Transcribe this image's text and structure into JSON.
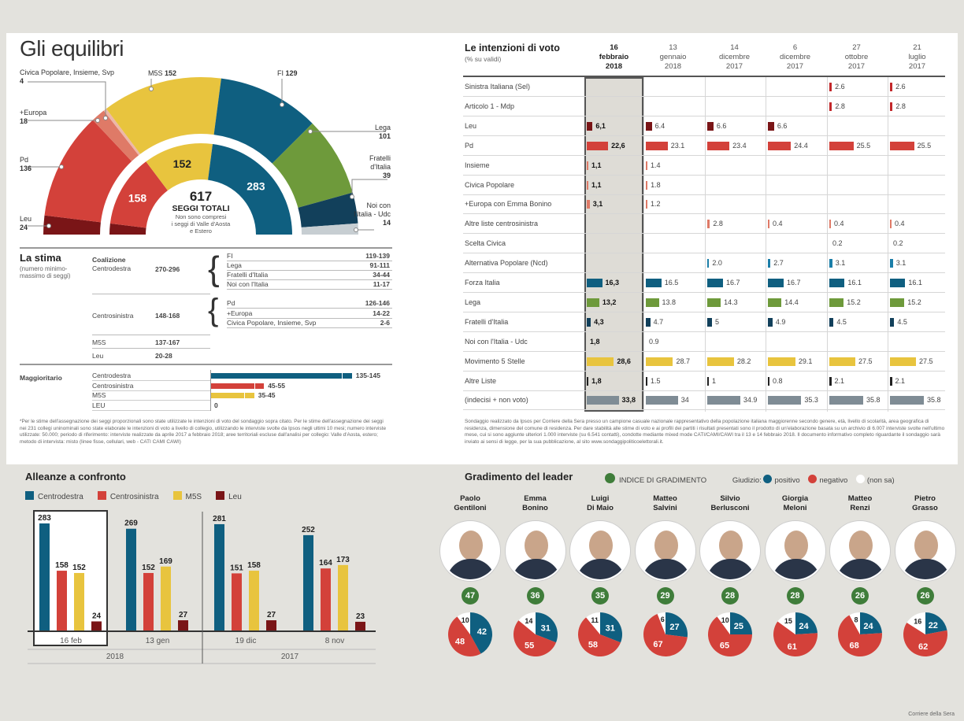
{
  "equilibri": {
    "title": "Gli equilibri",
    "total": "617",
    "total_label": "SEGGI TOTALI",
    "note": [
      "Non sono compresi",
      "i seggi di Valle d'Aosta",
      "e Estero"
    ],
    "outer": [
      {
        "party": "Leu",
        "seats": 24,
        "color": "#7a1517"
      },
      {
        "party": "Pd",
        "seats": 136,
        "color": "#d3413a"
      },
      {
        "party": "+Europa",
        "seats": 18,
        "color": "#df7a67"
      },
      {
        "party": "Civica Popolare, Insieme, Svp",
        "seats": 4,
        "color": "#edb7a8"
      },
      {
        "party": "M5S",
        "seats": 152,
        "color": "#e8c43e"
      },
      {
        "party": "FI",
        "seats": 129,
        "color": "#0f5f80"
      },
      {
        "party": "Lega",
        "seats": 101,
        "color": "#6e9a3b"
      },
      {
        "party": "Fratelli d'Italia",
        "seats": 39,
        "color": "#12405b"
      },
      {
        "party": "Noi con l'Italia - Udc",
        "seats": 14,
        "color": "#c7ced2"
      }
    ],
    "inner": [
      {
        "group": "Leu",
        "seats": 24,
        "label": "",
        "color": "#7a1517"
      },
      {
        "group": "Centrosinistra",
        "seats": 158,
        "label": "158",
        "color": "#d3413a"
      },
      {
        "group": "M5S",
        "seats": 152,
        "label": "152",
        "color": "#e8c43e"
      },
      {
        "group": "Centrodestra",
        "seats": 283,
        "label": "283",
        "color": "#0f5f80"
      }
    ],
    "labels": {
      "civica": {
        "name": "Civica Popolare, Insieme, Svp",
        "value": "4"
      },
      "europa": {
        "name": "+Europa",
        "value": "18"
      },
      "pd": {
        "name": "Pd",
        "value": "136"
      },
      "leu": {
        "name": "Leu",
        "value": "24"
      },
      "m5s": {
        "name": "M5S",
        "value": "152"
      },
      "fi": {
        "name": "FI",
        "value": "129"
      },
      "lega": {
        "name": "Lega",
        "value": "101"
      },
      "fdi": {
        "name": "Fratelli d'Italia",
        "value": "39"
      },
      "noi": {
        "name": "Noi con l'Italia - Udc",
        "value": "14"
      }
    }
  },
  "stima": {
    "title": "La stima",
    "subtitle": "(numero minimo-massimo di seggi)",
    "coalizione": "Coalizione",
    "cdx": {
      "name": "Centrodestra",
      "range": "270-296",
      "parts": [
        [
          "FI",
          "119-139"
        ],
        [
          "Lega",
          "91-111"
        ],
        [
          "Fratelli d'Italia",
          "34-44"
        ],
        [
          "Noi con l'Italia",
          "11-17"
        ]
      ]
    },
    "csx": {
      "name": "Centrosinistra",
      "range": "148-168",
      "parts": [
        [
          "Pd",
          "126-146"
        ],
        [
          "+Europa",
          "14-22"
        ],
        [
          "Civica Popolare, Insieme, Svp",
          "2-6"
        ]
      ]
    },
    "m5s": {
      "name": "M5S",
      "range": "137-167"
    },
    "leu": {
      "name": "Leu",
      "range": "20-28"
    },
    "maggioritario": {
      "title": "Maggioritario",
      "rows": [
        {
          "name": "Centrodestra",
          "min": 135,
          "max": 145,
          "label": "135-145",
          "color": "#0f5f80"
        },
        {
          "name": "Centrosinistra",
          "min": 45,
          "max": 55,
          "label": "45-55",
          "color": "#d3413a"
        },
        {
          "name": "M5S",
          "min": 35,
          "max": 45,
          "label": "35-45",
          "color": "#e8c43e"
        },
        {
          "name": "LEU",
          "min": 0,
          "max": 0,
          "label": "0",
          "color": "#7a1517"
        }
      ]
    },
    "footnote": "*Per le stime dell'assegnazione dei seggi proporzionali sono state utilizzate le intenzioni di voto del sondaggio sopra citato. Per le stime dell'assegnazione dei seggi nei 231 collegi uninominali sono state elaborate le intenzioni di voto a livello di collegio, utilizzando le interviste svolte da Ipsos negli ultimi 10 mesi; numero interviste utilizzate: 50.000; periodo di riferimento: interviste realizzate da aprile 2017 a febbraio 2018; aree territoriali escluse dall'analisi per collegio: Valle d'Aosta, estero; metodo di intervista: misto (linee fisse, cellulari, web - CATI CAMI CAWI)"
  },
  "intenzioni": {
    "title": "Le intenzioni di voto",
    "subtitle": "(% su validi)",
    "columns": [
      [
        "16",
        "febbraio",
        "2018"
      ],
      [
        "13",
        "gennaio",
        "2018"
      ],
      [
        "14",
        "dicembre",
        "2017"
      ],
      [
        "6",
        "dicembre",
        "2017"
      ],
      [
        "27",
        "ottobre",
        "2017"
      ],
      [
        "21",
        "luglio",
        "2017"
      ]
    ],
    "rows": [
      {
        "name": "Sinistra Italiana (Sel)",
        "color": "#c3282b",
        "values": [
          "",
          "",
          "",
          "",
          "2.6",
          "2.6"
        ]
      },
      {
        "name": "Articolo 1 - Mdp",
        "color": "#c3282b",
        "values": [
          "",
          "",
          "",
          "",
          "2.8",
          "2.8"
        ]
      },
      {
        "name": "Leu",
        "color": "#7a1517",
        "values": [
          "6,1",
          "6.4",
          "6.6",
          "6.6",
          "",
          ""
        ]
      },
      {
        "name": "Pd",
        "color": "#d3413a",
        "values": [
          "22,6",
          "23.1",
          "23.4",
          "24.4",
          "25.5",
          "25.5"
        ]
      },
      {
        "name": "Insieme",
        "color": "#df7a67",
        "values": [
          "1,1",
          "1.4",
          "",
          "",
          "",
          ""
        ]
      },
      {
        "name": "Civica Popolare",
        "color": "#df7a67",
        "values": [
          "1,1",
          "1.8",
          "",
          "",
          "",
          ""
        ]
      },
      {
        "name": "+Europa con Emma Bonino",
        "color": "#df7a67",
        "values": [
          "3,1",
          "1.2",
          "",
          "",
          "",
          ""
        ]
      },
      {
        "name": "Altre liste centrosinistra",
        "color": "#df7a67",
        "values": [
          "",
          "",
          "2.8",
          "0.4",
          "0.4",
          "0.4"
        ]
      },
      {
        "name": "Scelta Civica",
        "color": "#999999",
        "values": [
          "",
          "",
          "",
          "",
          "0.2",
          "0.2"
        ]
      },
      {
        "name": "Alternativa Popolare (Ncd)",
        "color": "#1b7ea8",
        "values": [
          "",
          "",
          "2.0",
          "2.7",
          "3.1",
          "3.1"
        ]
      },
      {
        "name": "Forza Italia",
        "color": "#0f5f80",
        "values": [
          "16,3",
          "16.5",
          "16.7",
          "16.7",
          "16.1",
          "16.1"
        ]
      },
      {
        "name": "Lega",
        "color": "#6e9a3b",
        "values": [
          "13,2",
          "13.8",
          "14.3",
          "14.4",
          "15.2",
          "15.2"
        ]
      },
      {
        "name": "Fratelli d'Italia",
        "color": "#12405b",
        "values": [
          "4,3",
          "4.7",
          "5",
          "4.9",
          "4.5",
          "4.5"
        ]
      },
      {
        "name": "Noi con l'Italia - Udc",
        "color": "#999999",
        "values": [
          "1,8",
          "0.9",
          "",
          "",
          "",
          ""
        ]
      },
      {
        "name": "Movimento 5 Stelle",
        "color": "#e8c43e",
        "values": [
          "28,6",
          "28.7",
          "28.2",
          "29.1",
          "27.5",
          "27.5"
        ]
      },
      {
        "name": "Altre Liste",
        "color": "#222222",
        "values": [
          "1,8",
          "1.5",
          "1",
          "0.8",
          "2.1",
          "2.1"
        ]
      },
      {
        "name": "(indecisi + non voto)",
        "color": "#7f8c95",
        "values": [
          "33,8",
          "34",
          "34.9",
          "35.3",
          "35.8",
          "35.8"
        ]
      }
    ],
    "footnote": "Sondaggio realizzato da Ipsos per Corriere della Sera presso un campione casuale nazionale rappresentativo della popolazione italiana maggiorenne secondo genere, età, livello di scolarità, area geografica di residenza, dimensione del comune di residenza. Per dare stabilità alle stime di voto e ai profili dei partiti i risultati presentati sono il prodotto di un'elaborazione basata su un archivio di 6.007 interviste svolte nell'ultimo mese, cui si sono aggiunte ulteriori 1.000 interviste (su 6.541 contatti), condotte mediante mixed mode CATI/CAMI/CAWI tra il 13 e 14 febbraio 2018. Il documento informativo completo riguardante il sondaggio sarà inviato ai sensi di legge, per la sua pubblicazione, al sito www.sondaggipoliticoelettorali.it."
  },
  "chart_data": [
    {
      "type": "bar",
      "title": "Alleanze a confronto",
      "categories": [
        "16 feb",
        "13 gen",
        "19 dic",
        "8 nov"
      ],
      "years": [
        {
          "label": "2018",
          "span": 2
        },
        {
          "label": "2017",
          "span": 2
        }
      ],
      "series": [
        {
          "name": "Centrodestra",
          "color": "#0f5f80",
          "values": [
            283,
            269,
            281,
            252
          ]
        },
        {
          "name": "Centrosinistra",
          "color": "#d3413a",
          "values": [
            158,
            152,
            151,
            164
          ]
        },
        {
          "name": "M5S",
          "color": "#e8c43e",
          "values": [
            152,
            169,
            158,
            173
          ]
        },
        {
          "name": "Leu",
          "color": "#7a1517",
          "values": [
            24,
            27,
            27,
            23
          ]
        }
      ],
      "highlight": "16 feb",
      "ylim": [
        0,
        300
      ],
      "grid": false,
      "legend": "top"
    },
    {
      "type": "pie",
      "title": "Gradimento del leader",
      "legend": {
        "index": "INDICE DI GRADIMENTO",
        "giudizio": "Giudizio:",
        "positive": "positivo",
        "negative": "negativo",
        "unknown": "(non sa)"
      },
      "colors": {
        "index": "#3f7d3a",
        "positive": "#0f5f80",
        "negative": "#d3413a",
        "unknown": "#ffffff"
      },
      "leaders": [
        {
          "name": [
            "Paolo",
            "Gentiloni"
          ],
          "index": 47,
          "positive": 42,
          "negative": 48,
          "unknown": 10
        },
        {
          "name": [
            "Emma",
            "Bonino"
          ],
          "index": 36,
          "positive": 31,
          "negative": 55,
          "unknown": 14
        },
        {
          "name": [
            "Luigi",
            "Di Maio"
          ],
          "index": 35,
          "positive": 31,
          "negative": 58,
          "unknown": 11
        },
        {
          "name": [
            "Matteo",
            "Salvini"
          ],
          "index": 29,
          "positive": 27,
          "negative": 67,
          "unknown": 6
        },
        {
          "name": [
            "Silvio",
            "Berlusconi"
          ],
          "index": 28,
          "positive": 25,
          "negative": 65,
          "unknown": 10
        },
        {
          "name": [
            "Giorgia",
            "Meloni"
          ],
          "index": 28,
          "positive": 24,
          "negative": 61,
          "unknown": 15
        },
        {
          "name": [
            "Matteo",
            "Renzi"
          ],
          "index": 26,
          "positive": 24,
          "negative": 68,
          "unknown": 8
        },
        {
          "name": [
            "Pietro",
            "Grasso"
          ],
          "index": 26,
          "positive": 22,
          "negative": 62,
          "unknown": 16
        }
      ]
    }
  ],
  "credit": "Corriere della Sera"
}
